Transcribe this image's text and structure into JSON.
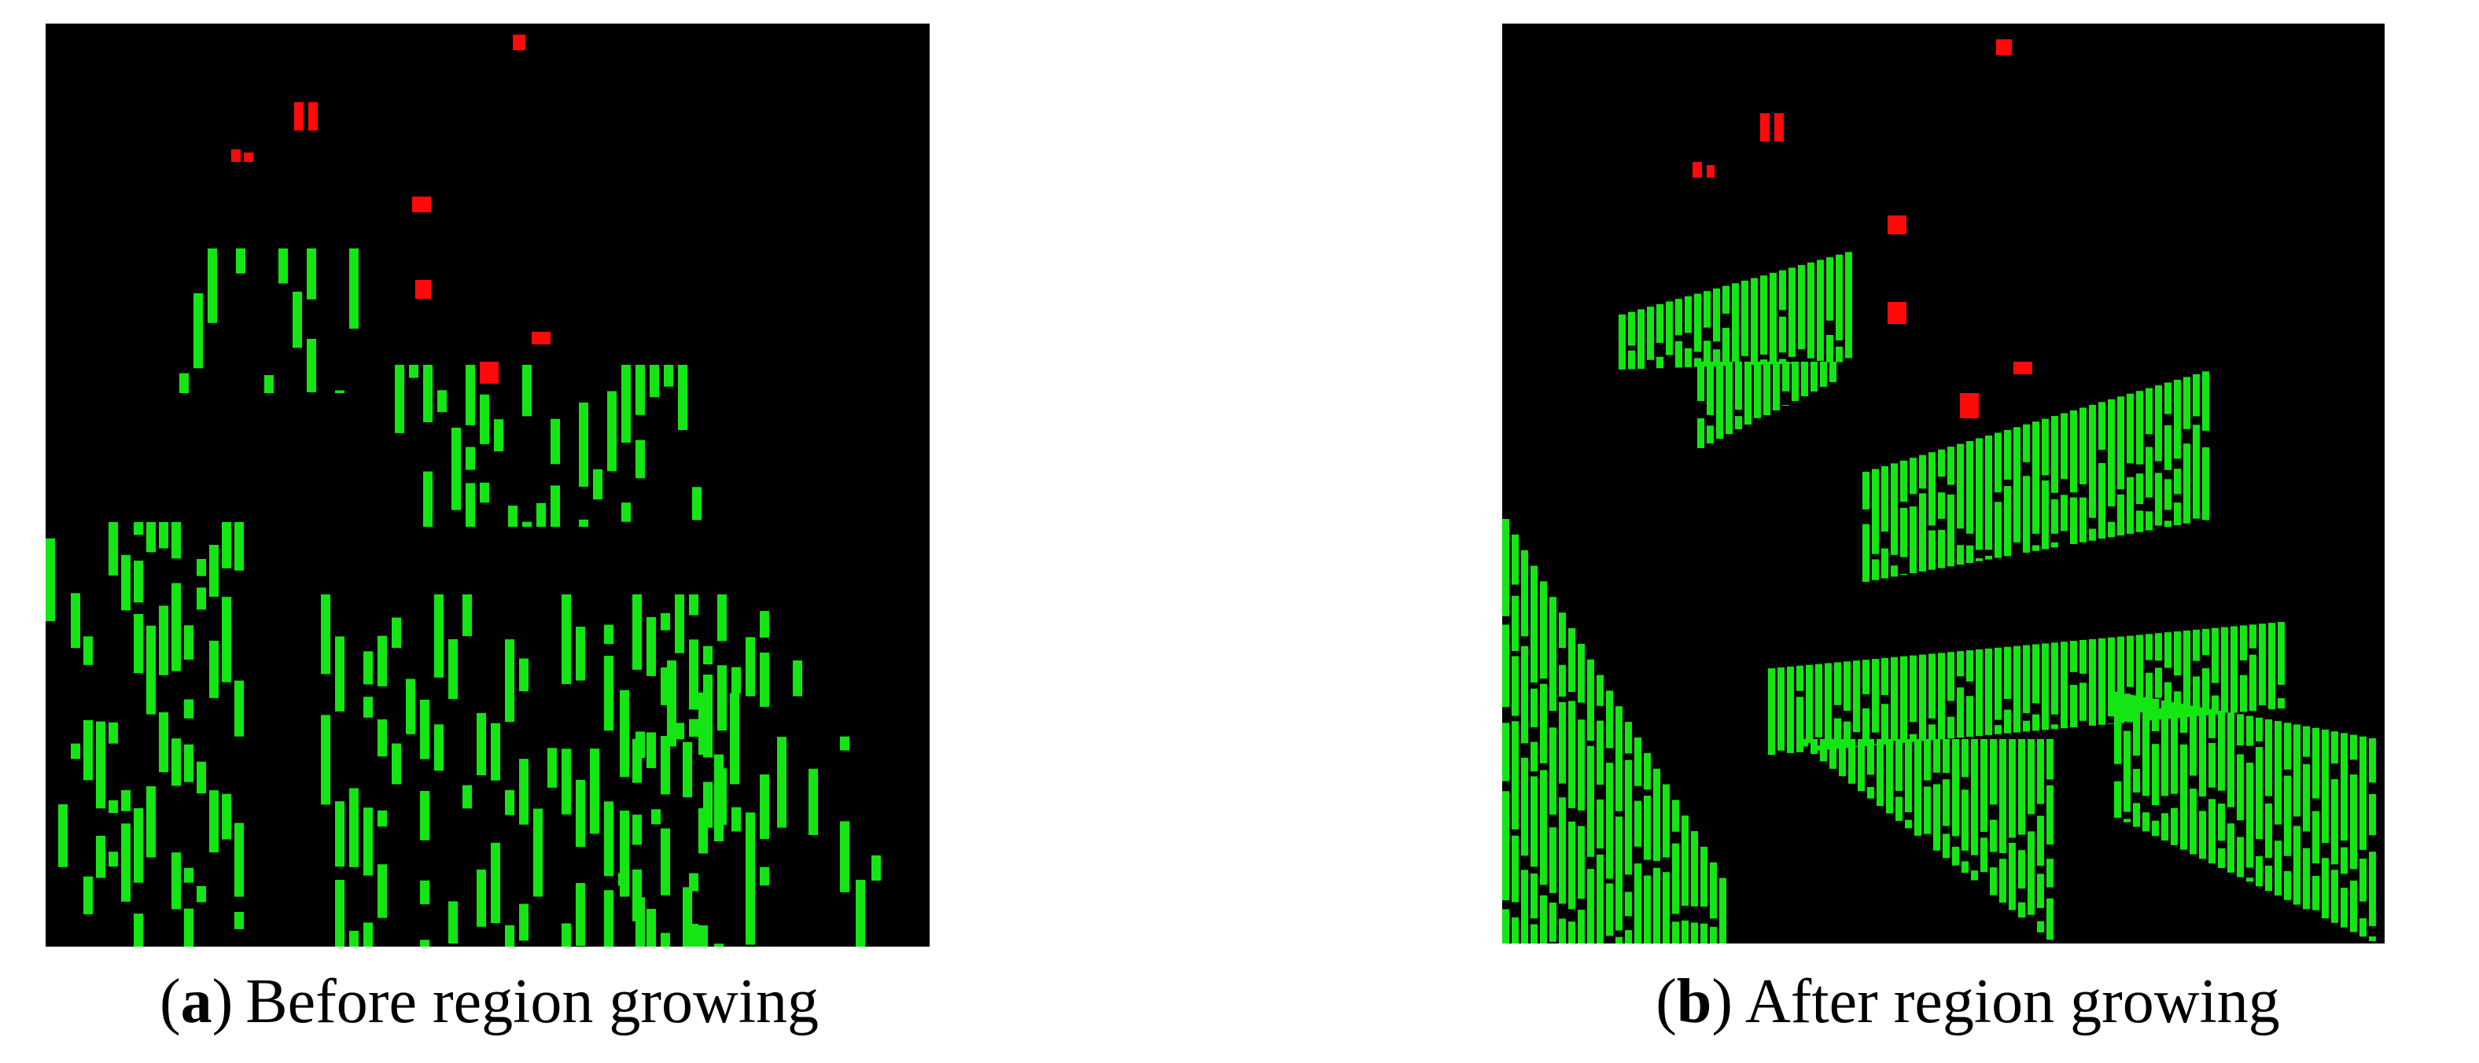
{
  "panels": [
    {
      "caption": {
        "open": "(",
        "label": "a",
        "close": ")",
        "text": "Before region growing"
      }
    },
    {
      "caption": {
        "open": "(",
        "label": "b",
        "close": ")",
        "text": "After region growing"
      }
    }
  ]
}
